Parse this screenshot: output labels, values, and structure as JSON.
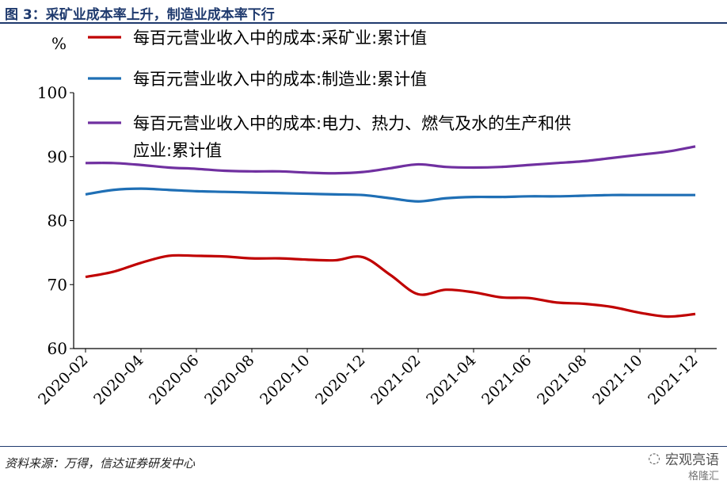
{
  "figure": {
    "title": "图 3：采矿业成本率上升，制造业成本率下行",
    "source": "资料来源：万得，信达证券研发中心",
    "watermark": "宏观亮语",
    "watermark_sub": "格隆汇"
  },
  "chart_data": {
    "type": "line",
    "unit_label": "%",
    "ylim": [
      60,
      100
    ],
    "yticks": [
      60,
      70,
      80,
      90,
      100
    ],
    "xticks": [
      "2020-02",
      "2020-04",
      "2020-06",
      "2020-08",
      "2020-10",
      "2020-12",
      "2021-02",
      "2021-04",
      "2021-06",
      "2021-08",
      "2021-10",
      "2021-12"
    ],
    "legend_position": "top",
    "series": [
      {
        "name_lines": [
          "每百元营业收入中的成本:采矿业:累计值"
        ],
        "color": "#c00000",
        "points": [
          [
            "2020-02",
            71.2
          ],
          [
            "2020-03",
            72.0
          ],
          [
            "2020-04",
            73.4
          ],
          [
            "2020-05",
            74.5
          ],
          [
            "2020-06",
            74.5
          ],
          [
            "2020-07",
            74.4
          ],
          [
            "2020-08",
            74.1
          ],
          [
            "2020-09",
            74.1
          ],
          [
            "2020-10",
            73.9
          ],
          [
            "2020-11",
            73.8
          ],
          [
            "2020-12",
            74.3
          ],
          [
            "2021-01",
            71.5
          ],
          [
            "2021-02",
            68.5
          ],
          [
            "2021-03",
            69.2
          ],
          [
            "2021-04",
            68.8
          ],
          [
            "2021-05",
            68.0
          ],
          [
            "2021-06",
            67.9
          ],
          [
            "2021-07",
            67.2
          ],
          [
            "2021-08",
            67.0
          ],
          [
            "2021-09",
            66.5
          ],
          [
            "2021-10",
            65.6
          ],
          [
            "2021-11",
            65.0
          ],
          [
            "2021-12",
            65.4
          ]
        ]
      },
      {
        "name_lines": [
          "每百元营业收入中的成本:制造业:累计值"
        ],
        "color": "#1f6fb5",
        "points": [
          [
            "2020-02",
            84.1
          ],
          [
            "2020-03",
            84.8
          ],
          [
            "2020-04",
            85.0
          ],
          [
            "2020-05",
            84.8
          ],
          [
            "2020-06",
            84.6
          ],
          [
            "2020-07",
            84.5
          ],
          [
            "2020-08",
            84.4
          ],
          [
            "2020-09",
            84.3
          ],
          [
            "2020-10",
            84.2
          ],
          [
            "2020-11",
            84.1
          ],
          [
            "2020-12",
            84.0
          ],
          [
            "2021-01",
            83.5
          ],
          [
            "2021-02",
            83.0
          ],
          [
            "2021-03",
            83.5
          ],
          [
            "2021-04",
            83.7
          ],
          [
            "2021-05",
            83.7
          ],
          [
            "2021-06",
            83.8
          ],
          [
            "2021-07",
            83.8
          ],
          [
            "2021-08",
            83.9
          ],
          [
            "2021-09",
            84.0
          ],
          [
            "2021-10",
            84.0
          ],
          [
            "2021-11",
            84.0
          ],
          [
            "2021-12",
            84.0
          ]
        ]
      },
      {
        "name_lines": [
          "每百元营业收入中的成本:电力、热力、燃气及水的生产和供",
          "应业:累计值"
        ],
        "color": "#7030a0",
        "points": [
          [
            "2020-02",
            89.0
          ],
          [
            "2020-03",
            89.0
          ],
          [
            "2020-04",
            88.7
          ],
          [
            "2020-05",
            88.3
          ],
          [
            "2020-06",
            88.1
          ],
          [
            "2020-07",
            87.8
          ],
          [
            "2020-08",
            87.7
          ],
          [
            "2020-09",
            87.7
          ],
          [
            "2020-10",
            87.5
          ],
          [
            "2020-11",
            87.4
          ],
          [
            "2020-12",
            87.6
          ],
          [
            "2021-01",
            88.2
          ],
          [
            "2021-02",
            88.8
          ],
          [
            "2021-03",
            88.4
          ],
          [
            "2021-04",
            88.3
          ],
          [
            "2021-05",
            88.4
          ],
          [
            "2021-06",
            88.7
          ],
          [
            "2021-07",
            89.0
          ],
          [
            "2021-08",
            89.3
          ],
          [
            "2021-09",
            89.8
          ],
          [
            "2021-10",
            90.3
          ],
          [
            "2021-11",
            90.8
          ],
          [
            "2021-12",
            91.6
          ]
        ]
      }
    ]
  }
}
